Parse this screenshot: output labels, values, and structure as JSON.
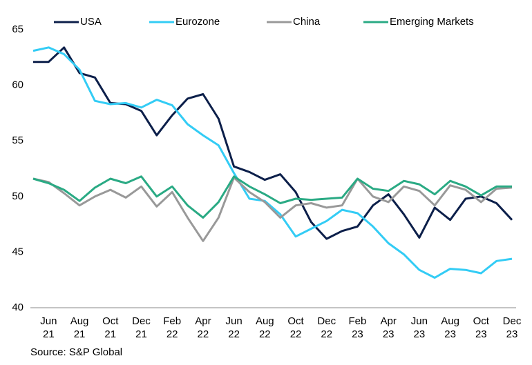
{
  "chart_data": {
    "type": "line",
    "source": "Source: S&P Global",
    "categories": [
      null,
      "Jun 21",
      null,
      "Aug 21",
      null,
      "Oct 21",
      null,
      "Dec 21",
      null,
      "Feb 22",
      null,
      "Apr 22",
      null,
      "Jun 22",
      null,
      "Aug 22",
      null,
      "Oct 22",
      null,
      "Dec 22",
      null,
      "Feb 23",
      null,
      "Apr 23",
      null,
      "Jun 23",
      null,
      "Aug 23",
      null,
      "Oct 23",
      null,
      "Dec 23"
    ],
    "series": [
      {
        "name": "USA",
        "color": "#0c1f4a",
        "values": [
          62.1,
          62.1,
          63.4,
          61.1,
          60.7,
          58.4,
          58.3,
          57.7,
          55.5,
          57.3,
          58.8,
          59.2,
          57.0,
          52.7,
          52.2,
          51.5,
          52.0,
          50.4,
          47.7,
          46.2,
          46.9,
          47.3,
          49.2,
          50.2,
          48.4,
          46.3,
          49.0,
          47.9,
          49.8,
          50.0,
          49.4,
          47.9
        ]
      },
      {
        "name": "Eurozone",
        "color": "#33ccf5",
        "values": [
          63.1,
          63.4,
          62.8,
          61.4,
          58.6,
          58.3,
          58.4,
          58.0,
          58.7,
          58.2,
          56.5,
          55.5,
          54.6,
          52.1,
          49.8,
          49.6,
          48.4,
          46.4,
          47.1,
          47.8,
          48.8,
          48.5,
          47.3,
          45.8,
          44.8,
          43.4,
          42.7,
          43.5,
          43.4,
          43.1,
          44.2,
          44.4
        ]
      },
      {
        "name": "China",
        "color": "#999999",
        "values": [
          51.6,
          51.3,
          50.3,
          49.2,
          50.0,
          50.6,
          49.9,
          50.9,
          49.1,
          50.4,
          48.1,
          46.0,
          48.1,
          51.7,
          50.4,
          49.5,
          48.1,
          49.2,
          49.4,
          49.0,
          49.2,
          51.6,
          50.0,
          49.5,
          50.9,
          50.5,
          49.2,
          51.0,
          50.6,
          49.5,
          50.7,
          50.8
        ]
      },
      {
        "name": "Emerging Markets",
        "color": "#2aaa84",
        "values": [
          51.6,
          51.2,
          50.6,
          49.6,
          50.8,
          51.6,
          51.2,
          51.8,
          50.0,
          50.9,
          49.2,
          48.1,
          49.5,
          51.8,
          50.9,
          50.2,
          49.4,
          49.8,
          49.7,
          49.8,
          49.9,
          51.6,
          50.7,
          50.5,
          51.4,
          51.1,
          50.2,
          51.4,
          50.9,
          50.1,
          50.9,
          50.9
        ]
      }
    ],
    "ylim": [
      40,
      65
    ],
    "yticks": [
      40,
      45,
      50,
      55,
      60,
      65
    ],
    "grid": false,
    "legend": "top"
  }
}
